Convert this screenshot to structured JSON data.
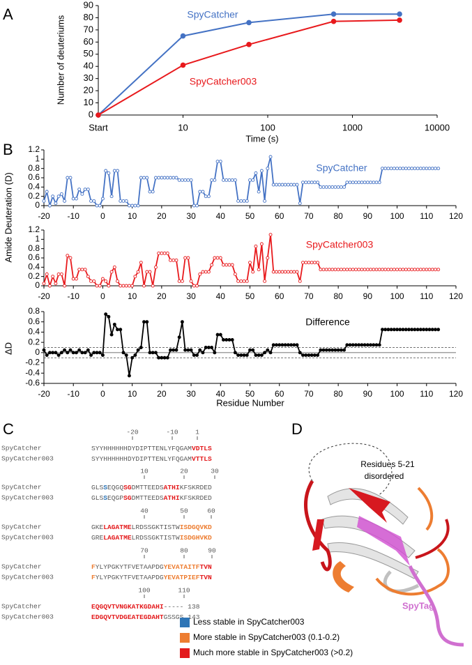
{
  "panel_labels": [
    "A",
    "B",
    "C",
    "D"
  ],
  "chart_data": [
    {
      "type": "line",
      "xscale": "log",
      "x": [
        1,
        10,
        60,
        600,
        3600
      ],
      "xlim": [
        1,
        10000
      ],
      "xticks": [
        {
          "value": 1,
          "label": "Start"
        },
        10,
        100,
        1000,
        10000
      ],
      "ylim": [
        0,
        90
      ],
      "yticks": [
        0,
        10,
        20,
        30,
        40,
        50,
        60,
        70,
        80,
        90
      ],
      "x_label": "Time (s)",
      "y_label": "Number of deuteriums",
      "series": [
        {
          "name": "SpyCatcher",
          "color": "#4472c4",
          "values": [
            0,
            65,
            76,
            83,
            83
          ]
        },
        {
          "name": "SpyCatcher003",
          "color": "#e8191c",
          "values": [
            0,
            41,
            58,
            77,
            78
          ]
        }
      ]
    },
    {
      "type": "line-panels",
      "x": [
        -20,
        -19,
        -18,
        -17,
        -16,
        -15,
        -14,
        -13,
        -12,
        -11,
        -10,
        -9,
        -8,
        -7,
        -6,
        -5,
        -4,
        -3,
        -2,
        -1,
        0,
        1,
        2,
        3,
        4,
        5,
        6,
        7,
        8,
        9,
        10,
        11,
        12,
        13,
        14,
        15,
        16,
        17,
        18,
        19,
        20,
        21,
        22,
        23,
        24,
        25,
        26,
        27,
        28,
        29,
        30,
        31,
        32,
        33,
        34,
        35,
        36,
        37,
        38,
        39,
        40,
        41,
        42,
        43,
        44,
        45,
        46,
        47,
        48,
        49,
        50,
        51,
        52,
        53,
        54,
        55,
        56,
        57,
        58,
        59,
        60,
        61,
        62,
        63,
        64,
        65,
        66,
        67,
        68,
        69,
        70,
        71,
        72,
        73,
        74,
        75,
        76,
        77,
        78,
        79,
        80,
        81,
        82,
        83,
        84,
        85,
        86,
        87,
        88,
        89,
        90,
        91,
        92,
        93,
        94,
        95,
        96,
        97,
        98,
        99,
        100,
        101,
        102,
        103,
        104,
        105,
        106,
        107,
        108,
        109,
        110,
        111,
        112,
        113,
        114
      ],
      "xlim": [
        -20,
        120
      ],
      "xticks": [
        -20,
        -10,
        0,
        10,
        20,
        30,
        40,
        50,
        60,
        70,
        80,
        90,
        100,
        110,
        120
      ],
      "x_label": "Residue Number",
      "y_labels": [
        "Amide Deuteration (D)",
        "ΔD"
      ],
      "series": [
        {
          "name": "SpyCatcher",
          "color": "#4472c4",
          "marker": "open",
          "ylim": [
            0,
            1.2
          ],
          "yticks": [
            0,
            0.2,
            0.4,
            0.6,
            0.8,
            1,
            1.2
          ],
          "values": [
            0.1,
            0.3,
            0.0,
            0.2,
            0.05,
            0.2,
            0.25,
            0.1,
            0.6,
            0.6,
            0.15,
            0.15,
            0.35,
            0.25,
            0.35,
            0.35,
            0.1,
            0.1,
            0.0,
            0.0,
            0.15,
            0.75,
            0.7,
            0.2,
            0.75,
            0.75,
            0.1,
            0.1,
            0.1,
            0.0,
            0.0,
            0.0,
            0.0,
            0.6,
            0.6,
            0.6,
            0.3,
            0.3,
            0.6,
            0.6,
            0.6,
            0.6,
            0.6,
            0.6,
            0.6,
            0.6,
            0.55,
            0.55,
            0.55,
            0.55,
            0.55,
            0.0,
            0.0,
            0.3,
            0.3,
            0.2,
            0.2,
            0.55,
            0.55,
            0.95,
            0.95,
            0.55,
            0.55,
            0.55,
            0.55,
            0.55,
            0.1,
            0.1,
            0.1,
            0.1,
            0.55,
            0.55,
            0.7,
            0.3,
            0.75,
            0.1,
            0.8,
            1.05,
            0.45,
            0.45,
            0.45,
            0.45,
            0.45,
            0.45,
            0.45,
            0.45,
            0.45,
            0.05,
            0.5,
            0.5,
            0.5,
            0.5,
            0.5,
            0.5,
            0.4,
            0.4,
            0.4,
            0.4,
            0.4,
            0.4,
            0.4,
            0.4,
            0.4,
            0.5,
            0.5,
            0.5,
            0.5,
            0.5,
            0.5,
            0.5,
            0.5,
            0.5,
            0.5,
            0.5,
            0.5,
            0.8,
            0.8,
            0.8,
            0.8,
            0.8,
            0.8,
            0.8,
            0.8,
            0.8,
            0.8,
            0.8,
            0.8,
            0.8,
            0.8,
            0.8,
            0.8,
            0.8,
            0.8,
            0.8,
            0.8
          ]
        },
        {
          "name": "SpyCatcher003",
          "color": "#e8191c",
          "marker": "open",
          "ylim": [
            0,
            1.2
          ],
          "yticks": [
            0,
            0.2,
            0.4,
            0.6,
            0.8,
            1,
            1.2
          ],
          "values": [
            0.05,
            0.25,
            0.0,
            0.2,
            0.05,
            0.25,
            0.25,
            0.0,
            0.65,
            0.6,
            0.15,
            0.15,
            0.35,
            0.35,
            0.35,
            0.2,
            0.1,
            0.1,
            0.0,
            0.0,
            0.15,
            0.1,
            0.0,
            0.3,
            0.4,
            0.1,
            0.0,
            0.0,
            0.0,
            0.0,
            0.0,
            0.2,
            0.3,
            0.5,
            0.0,
            0.3,
            0.3,
            0.0,
            0.4,
            0.7,
            0.7,
            0.7,
            0.7,
            0.55,
            0.55,
            0.55,
            0.1,
            0.1,
            0.6,
            0.6,
            0.1,
            0.0,
            0.0,
            0.25,
            0.3,
            0.3,
            0.3,
            0.45,
            0.6,
            0.6,
            0.6,
            0.45,
            0.45,
            0.45,
            0.45,
            0.25,
            0.1,
            0.1,
            0.1,
            0.1,
            0.5,
            0.3,
            0.85,
            0.35,
            0.9,
            0.1,
            0.6,
            1.1,
            0.3,
            0.3,
            0.3,
            0.3,
            0.3,
            0.3,
            0.3,
            0.3,
            0.3,
            0.1,
            0.5,
            0.5,
            0.5,
            0.5,
            0.5,
            0.5,
            0.35,
            0.35,
            0.35,
            0.35,
            0.35,
            0.35,
            0.35,
            0.35,
            0.35,
            0.35,
            0.35,
            0.35,
            0.35,
            0.35,
            0.35,
            0.35,
            0.35,
            0.35,
            0.35,
            0.35,
            0.35,
            0.35,
            0.35,
            0.35,
            0.35,
            0.35,
            0.35,
            0.35,
            0.35,
            0.35,
            0.35,
            0.35,
            0.35,
            0.35,
            0.35,
            0.35,
            0.35,
            0.35,
            0.35,
            0.35,
            0.35
          ]
        },
        {
          "name": "Difference",
          "color": "#000000",
          "marker": "filled",
          "ylim": [
            -0.6,
            0.8
          ],
          "yticks": [
            -0.6,
            -0.4,
            -0.2,
            0,
            0.2,
            0.4,
            0.6,
            0.8
          ],
          "ref_lines": [
            {
              "value": 0.1,
              "style": "dashed"
            },
            {
              "value": 0,
              "style": "solid"
            },
            {
              "value": -0.1,
              "style": "dashed"
            }
          ],
          "values": [
            0.05,
            -0.05,
            0.0,
            0.0,
            0.0,
            -0.05,
            0.0,
            0.05,
            0.0,
            0.05,
            0.0,
            0.0,
            0.05,
            0.0,
            0.0,
            0.05,
            -0.05,
            0.0,
            0.0,
            0.0,
            -0.05,
            0.75,
            0.7,
            0.35,
            0.55,
            0.45,
            0.45,
            0.0,
            -0.05,
            -0.45,
            -0.1,
            -0.05,
            0.05,
            0.1,
            0.6,
            0.6,
            0.0,
            0.0,
            0.0,
            -0.1,
            -0.1,
            -0.1,
            -0.1,
            0.05,
            0.05,
            0.05,
            0.3,
            0.6,
            0.05,
            0.05,
            0.05,
            -0.05,
            -0.05,
            0.05,
            0.0,
            0.1,
            0.1,
            0.1,
            0.0,
            0.35,
            0.35,
            0.25,
            0.25,
            0.25,
            0.25,
            0.0,
            -0.05,
            -0.05,
            -0.05,
            -0.05,
            0.05,
            0.05,
            -0.05,
            -0.05,
            -0.05,
            0.0,
            0.05,
            0.0,
            0.15,
            0.15,
            0.15,
            0.15,
            0.15,
            0.15,
            0.15,
            0.15,
            0.15,
            0.0,
            -0.05,
            -0.05,
            -0.05,
            -0.05,
            -0.05,
            -0.05,
            0.05,
            0.05,
            0.05,
            0.05,
            0.05,
            0.05,
            0.05,
            0.05,
            0.05,
            0.15,
            0.15,
            0.15,
            0.15,
            0.15,
            0.15,
            0.15,
            0.15,
            0.15,
            0.15,
            0.15,
            0.15,
            0.45,
            0.45,
            0.45,
            0.45,
            0.45,
            0.45,
            0.45,
            0.45,
            0.45,
            0.45,
            0.45,
            0.45,
            0.45,
            0.45,
            0.45,
            0.45,
            0.45,
            0.45,
            0.45,
            0.45
          ]
        }
      ]
    }
  ],
  "alignment": {
    "blocks": [
      {
        "ruler": [
          -20,
          -10,
          1
        ],
        "rows": [
          {
            "name": "SpyCatcher",
            "segments": [
              {
                "text": "SYYHHHHHHDYDIPTTENLYFQGAM",
                "color": "#595959"
              },
              {
                "text": "VDTLS",
                "color": "#e31a1c",
                "bold": true
              }
            ]
          },
          {
            "name": "SpyCatcher003",
            "segments": [
              {
                "text": "SYYHHHHHHDYDIPTTENLYFQGAM",
                "color": "#595959"
              },
              {
                "text": "VTTLS",
                "color": "#e31a1c",
                "bold": true
              }
            ]
          }
        ]
      },
      {
        "ruler": [
          10,
          20,
          30
        ],
        "rows": [
          {
            "name": "SpyCatcher",
            "segments": [
              {
                "text": "GLS",
                "color": "#595959"
              },
              {
                "text": "S",
                "color": "#2e75b6",
                "bold": true
              },
              {
                "text": "EQGQ",
                "color": "#595959"
              },
              {
                "text": "SG",
                "color": "#e31a1c",
                "bold": true
              },
              {
                "text": "DMTTEEDS",
                "color": "#595959"
              },
              {
                "text": "ATHI",
                "color": "#e31a1c",
                "bold": true
              },
              {
                "text": "KFSKRDED",
                "color": "#595959"
              }
            ]
          },
          {
            "name": "SpyCatcher003",
            "segments": [
              {
                "text": "GLS",
                "color": "#595959"
              },
              {
                "text": "S",
                "color": "#2e75b6",
                "bold": true
              },
              {
                "text": "EQGP",
                "color": "#595959"
              },
              {
                "text": "SG",
                "color": "#e31a1c",
                "bold": true
              },
              {
                "text": "DMTTEEDS",
                "color": "#595959"
              },
              {
                "text": "ATHI",
                "color": "#e31a1c",
                "bold": true
              },
              {
                "text": "KFSKRDED",
                "color": "#595959"
              }
            ]
          }
        ]
      },
      {
        "ruler": [
          40,
          50,
          60
        ],
        "rows": [
          {
            "name": "SpyCatcher",
            "segments": [
              {
                "text": "GKE",
                "color": "#595959"
              },
              {
                "text": "LAGATME",
                "color": "#e31a1c",
                "bold": true
              },
              {
                "text": "LRDSSGKTISTW",
                "color": "#595959"
              },
              {
                "text": "ISDGQVKD",
                "color": "#ed7d31",
                "bold": true
              }
            ]
          },
          {
            "name": "SpyCatcher003",
            "segments": [
              {
                "text": "GRE",
                "color": "#595959"
              },
              {
                "text": "LAGATME",
                "color": "#e31a1c",
                "bold": true
              },
              {
                "text": "LRDSSGKTISTW",
                "color": "#595959"
              },
              {
                "text": "ISDGHVKD",
                "color": "#ed7d31",
                "bold": true
              }
            ]
          }
        ]
      },
      {
        "ruler": [
          70,
          80,
          90
        ],
        "rows": [
          {
            "name": "SpyCatcher",
            "segments": [
              {
                "text": "F",
                "color": "#ed7d31",
                "bold": true
              },
              {
                "text": "YLYPGKYTFVETAAPDG",
                "color": "#595959"
              },
              {
                "text": "YEVATAITF",
                "color": "#ed7d31",
                "bold": true
              },
              {
                "text": "TVN",
                "color": "#e31a1c",
                "bold": true
              }
            ]
          },
          {
            "name": "SpyCatcher003",
            "segments": [
              {
                "text": "F",
                "color": "#ed7d31",
                "bold": true
              },
              {
                "text": "YLYPGKYTFVETAAPDG",
                "color": "#595959"
              },
              {
                "text": "YEVATPIEF",
                "color": "#ed7d31",
                "bold": true
              },
              {
                "text": "TVN",
                "color": "#e31a1c",
                "bold": true
              }
            ]
          }
        ]
      },
      {
        "ruler": [
          100,
          110
        ],
        "rows": [
          {
            "name": "SpyCatcher",
            "segments": [
              {
                "text": "EQGQVTVNGKATKGDAHI",
                "color": "#e31a1c",
                "bold": true
              },
              {
                "text": "----- 138",
                "color": "#595959"
              }
            ]
          },
          {
            "name": "SpyCatcher003",
            "segments": [
              {
                "text": "EDGQVTVDGEATEGDAHT",
                "color": "#e31a1c",
                "bold": true
              },
              {
                "text": "GSSGS 143",
                "color": "#595959"
              }
            ]
          }
        ]
      }
    ],
    "legend": [
      {
        "label": "Less stable in SpyCatcher003",
        "color": "#2e75b6"
      },
      {
        "label": "More stable in SpyCatcher003 (0.1-0.2)",
        "color": "#ed7d31"
      },
      {
        "label": "Much more stable in SpyCatcher003 (>0.2)",
        "color": "#e31a1c"
      }
    ]
  },
  "structure": {
    "annotation_lines": [
      "Residues 5-21",
      "disordered"
    ],
    "peptide_label": "SpyTag"
  }
}
